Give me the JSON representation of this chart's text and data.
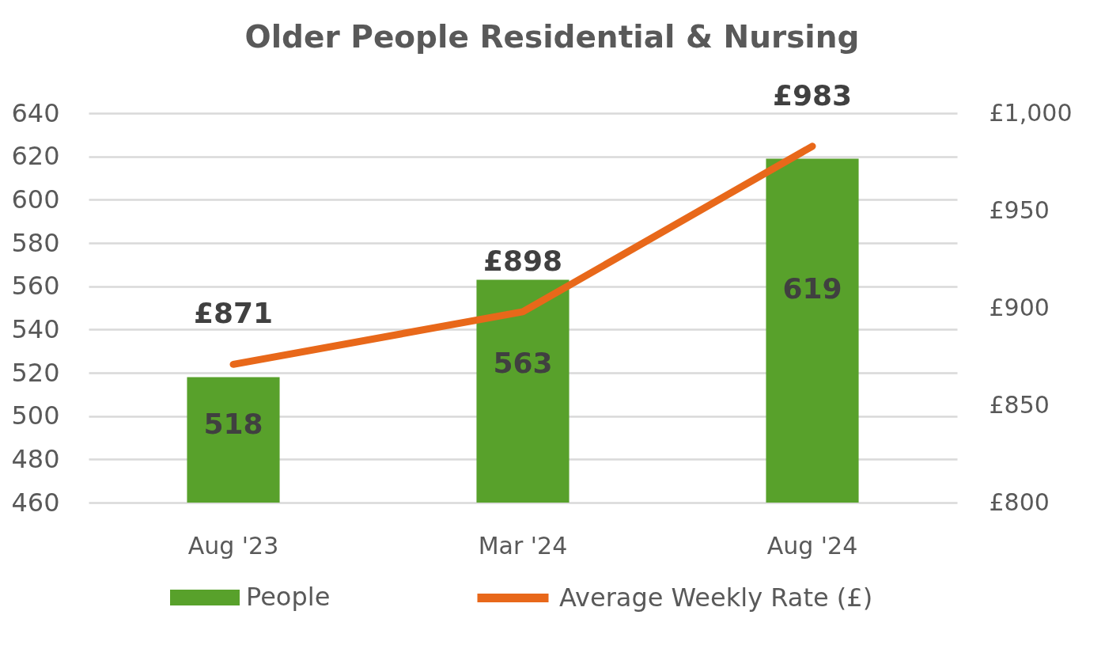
{
  "chart_data": {
    "type": "bar",
    "title": "Older People Residential & Nursing",
    "categories": [
      "Aug '23",
      "Mar '24",
      "Aug '24"
    ],
    "series": [
      {
        "name": "People",
        "color": "#58a12b",
        "values": [
          518,
          563,
          619
        ],
        "value_labels": [
          "518",
          "563",
          "619"
        ]
      },
      {
        "name": "Average Weekly Rate (£)",
        "type": "line",
        "axis": "y2",
        "color": "#e8681a",
        "values": [
          871,
          898,
          983
        ],
        "value_labels": [
          "£871",
          "£898",
          "£983"
        ]
      }
    ],
    "ylim": [
      460,
      640
    ],
    "yticks": [
      460,
      480,
      500,
      520,
      540,
      560,
      580,
      600,
      620,
      640
    ],
    "y2lim": [
      800,
      1000
    ],
    "y2ticks": [
      {
        "value": 800,
        "label": "£800"
      },
      {
        "value": 850,
        "label": "£850"
      },
      {
        "value": 900,
        "label": "£900"
      },
      {
        "value": 950,
        "label": "£950"
      },
      {
        "value": 1000,
        "label": "£1,000"
      }
    ],
    "grid": "y",
    "legend": "bottom"
  }
}
